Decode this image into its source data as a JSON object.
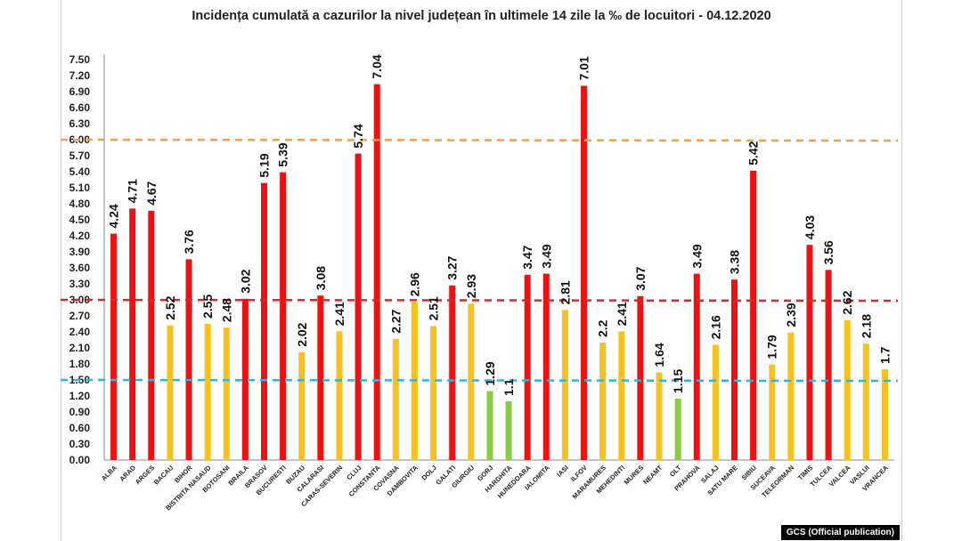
{
  "chart_data": {
    "type": "bar",
    "title": "Incidența cumulată a cazurilor la nivel județean în ultimele 14 zile la ‰ de locuitori - 04.12.2020",
    "xlabel": "",
    "ylabel": "",
    "ylim": [
      0,
      7.5
    ],
    "yticks": [
      "0.00",
      "0.30",
      "0.60",
      "0.90",
      "1.20",
      "1.50",
      "1.80",
      "2.10",
      "2.40",
      "2.70",
      "3.00",
      "3.30",
      "3.60",
      "3.90",
      "4.20",
      "4.50",
      "4.80",
      "5.10",
      "5.40",
      "5.70",
      "6.00",
      "6.30",
      "6.60",
      "6.90",
      "7.20",
      "7.50"
    ],
    "categories": [
      "ALBA",
      "ARAD",
      "ARGES",
      "BACAU",
      "BIHOR",
      "BISTRITA NASAUD",
      "BOTOSANI",
      "BRAILA",
      "BRASOV",
      "BUCURESTI",
      "BUZAU",
      "CALARASI",
      "CARAS-SEVERIN",
      "CLUJ",
      "CONSTANTA",
      "COVASNA",
      "DAMBOVITA",
      "DOLJ",
      "GALATI",
      "GIURGIU",
      "GORJ",
      "HARGHITA",
      "HUNEDOARA",
      "IALOMITA",
      "IASI",
      "ILFOV",
      "MARAMURES",
      "MEHEDINTI",
      "MURES",
      "NEAMT",
      "OLT",
      "PRAHOVA",
      "SALAJ",
      "SATU MARE",
      "SIBIU",
      "SUCEAVA",
      "TELEORMAN",
      "TIMIS",
      "TULCEA",
      "VALCEA",
      "VASLUI",
      "VRANCEA"
    ],
    "values": [
      4.24,
      4.71,
      4.67,
      2.52,
      3.76,
      2.55,
      2.48,
      3.02,
      5.19,
      5.39,
      2.02,
      3.08,
      2.41,
      5.74,
      7.04,
      2.27,
      2.96,
      2.51,
      3.27,
      2.93,
      1.29,
      1.1,
      3.47,
      3.49,
      2.81,
      7.01,
      2.2,
      2.41,
      3.07,
      1.64,
      1.15,
      3.49,
      2.16,
      3.38,
      5.42,
      1.79,
      2.39,
      4.03,
      3.56,
      2.62,
      2.18,
      1.7
    ],
    "value_labels": [
      "4.24",
      "4.71",
      "4.67",
      "2.52",
      "3.76",
      "2.55",
      "2.48",
      "3.02",
      "5.19",
      "5.39",
      "2.02",
      "3.08",
      "2.41",
      "5.74",
      "7.04",
      "2.27",
      "2.96",
      "2.51",
      "3.27",
      "2.93",
      "1.29",
      "1.1",
      "3.47",
      "3.49",
      "2.81",
      "7.01",
      "2.2",
      "2.41",
      "3.07",
      "1.64",
      "1.15",
      "3.49",
      "2.16",
      "3.38",
      "5.42",
      "1.79",
      "2.39",
      "4.03",
      "3.56",
      "2.62",
      "2.18",
      "1.7"
    ],
    "thresholds": [
      {
        "value": 6.0,
        "color": "#f0a050",
        "style": "dashed"
      },
      {
        "value": 3.0,
        "color": "#d42a2a",
        "style": "dashed"
      },
      {
        "value": 1.5,
        "color": "#33b2dd",
        "style": "dashed"
      }
    ],
    "color_rules": {
      "above_3": "#ee1111",
      "between_1_5_and_3": "#f7c21f",
      "below_1_5": "#8acb45"
    },
    "grid": false,
    "legend": "none"
  },
  "credit": "GCS (Official publication)"
}
